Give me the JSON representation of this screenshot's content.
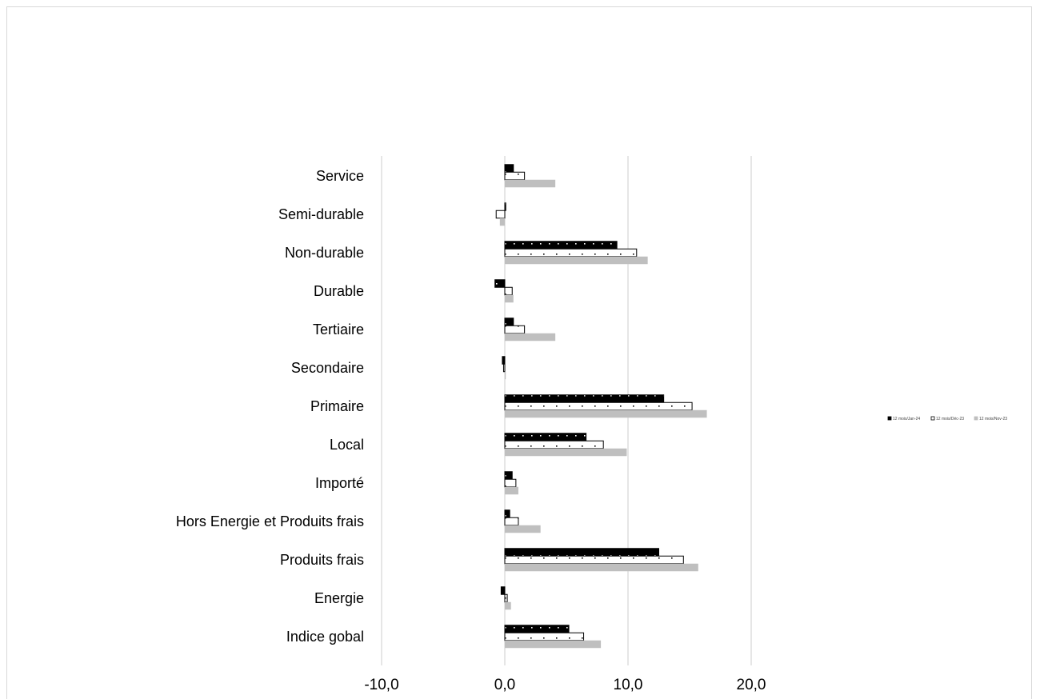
{
  "chart_data": {
    "type": "bar",
    "orientation": "horizontal",
    "categories": [
      "Service",
      "Semi-durable",
      "Non-durable",
      "Durable",
      "Tertiaire",
      "Secondaire",
      "Primaire",
      "Local",
      "Importé",
      "Hors Energie et Produits frais",
      "Produits frais",
      "Energie",
      "Indice gobal"
    ],
    "series": [
      {
        "name": "12 mois/Jan-24",
        "values": [
          0.7,
          0.0,
          9.1,
          -0.8,
          0.7,
          -0.2,
          12.9,
          6.6,
          0.6,
          0.4,
          12.5,
          -0.3,
          5.2
        ],
        "color": "#000000",
        "pattern": "dots-on-black"
      },
      {
        "name": "12 mois/Déc-23",
        "values": [
          1.6,
          -0.7,
          10.7,
          0.6,
          1.6,
          -0.1,
          15.2,
          8.0,
          0.9,
          1.1,
          14.5,
          0.2,
          6.4
        ],
        "color": "#ffffff",
        "pattern": "dots-on-white"
      },
      {
        "name": "12 mois/Nov-23",
        "values": [
          4.1,
          -0.4,
          11.6,
          0.7,
          4.1,
          0.0,
          16.4,
          9.9,
          1.1,
          2.9,
          15.7,
          0.5,
          7.8
        ],
        "color": "#bfbfbf",
        "pattern": "solid"
      }
    ],
    "x_ticks": [
      "-10,0",
      "0,0",
      "10,0",
      "20,0"
    ],
    "xlim": [
      -10,
      20
    ],
    "grid": true,
    "legend_position": "right"
  }
}
